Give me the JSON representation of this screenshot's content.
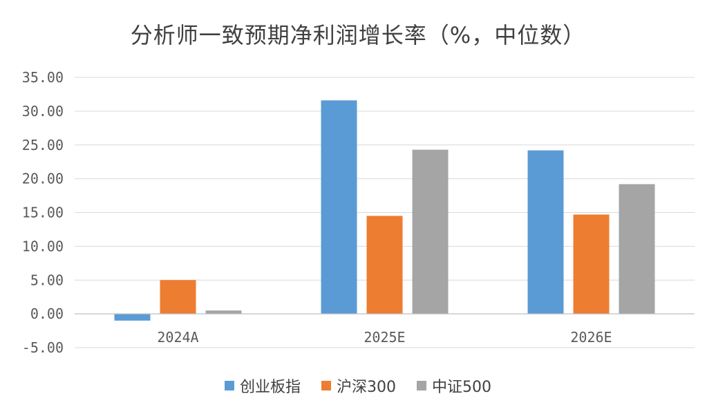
{
  "chart_data": {
    "type": "bar",
    "title": "分析师一致预期净利润增长率（%，中位数）",
    "categories": [
      "2024A",
      "2025E",
      "2026E"
    ],
    "series": [
      {
        "name": "创业板指",
        "color": "#5b9bd5",
        "values": [
          -1.0,
          31.6,
          24.2
        ]
      },
      {
        "name": "沪深300",
        "color": "#ed7d31",
        "values": [
          5.0,
          14.5,
          14.7
        ]
      },
      {
        "name": "中证500",
        "color": "#a5a5a5",
        "values": [
          0.5,
          24.3,
          19.2
        ]
      }
    ],
    "yticks": [
      "35.00",
      "30.00",
      "25.00",
      "20.00",
      "15.00",
      "10.00",
      "5.00",
      "0.00",
      "-5.00"
    ],
    "ylim": [
      -5,
      35
    ],
    "grid": true,
    "legend_position": "bottom"
  }
}
